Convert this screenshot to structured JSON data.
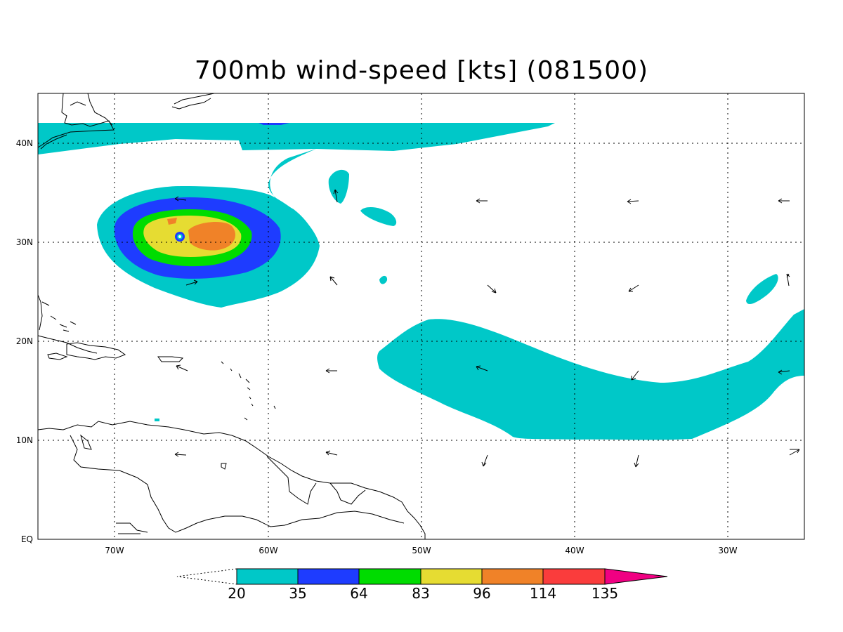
{
  "title": "700mb wind-speed [kts] (081500)",
  "lat_labels": [
    "40N",
    "30N",
    "20N",
    "10N",
    "EQ"
  ],
  "lon_labels": [
    "70W",
    "60W",
    "50W",
    "40W",
    "30W"
  ],
  "colorbar": {
    "breaks": [
      "20",
      "35",
      "64",
      "83",
      "96",
      "114",
      "135"
    ],
    "colors": [
      "#00c8c8",
      "#1e3cff",
      "#00dc00",
      "#e6dc32",
      "#f08228",
      "#fa3c3c",
      "#f00082"
    ]
  },
  "colors": {
    "coastline": "#000000",
    "gridline": "#000000"
  }
}
